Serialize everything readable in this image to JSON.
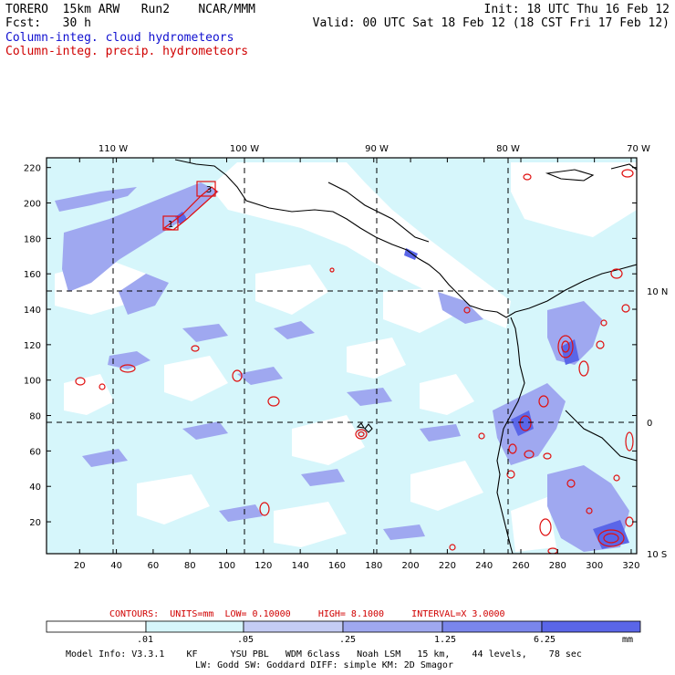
{
  "header": {
    "model": "TORERO",
    "resolution": "15km ARW",
    "run": "Run2",
    "org": "NCAR/MMM",
    "init": "Init: 18 UTC Thu 16 Feb 12",
    "fcst_label": "Fcst:",
    "fcst_value": "30 h",
    "valid": "Valid: 00 UTC Sat 18 Feb 12 (18 CST Fri 17 Feb 12)",
    "field1": "Column-integ. cloud hydrometeors",
    "field2": "Column-integ. precip. hydrometeors"
  },
  "map": {
    "x_ticks": [
      "20",
      "40",
      "60",
      "80",
      "100",
      "120",
      "140",
      "160",
      "180",
      "200",
      "220",
      "240",
      "260",
      "280",
      "300",
      "320"
    ],
    "y_ticks": [
      "20",
      "40",
      "60",
      "80",
      "100",
      "120",
      "140",
      "160",
      "180",
      "200",
      "220"
    ],
    "lon_labels": [
      "110 W",
      "100 W",
      "90 W",
      "80 W",
      "70 W"
    ],
    "lat_labels": [
      "10 N",
      "0",
      "10 S"
    ],
    "box_labels": [
      "1",
      "3"
    ],
    "colors": {
      "ocean": "#ffffff",
      "cloud_light": "#d6f6fb",
      "cloud_mid": "#9fa8f0",
      "cloud_dark": "#5a66e8",
      "precip": "#e01010",
      "coast": "#000000"
    }
  },
  "contours_caption": {
    "prefix": "CONTOURS:",
    "units": "UNITS=mm",
    "low": "LOW= 0.10000",
    "high": "HIGH= 8.1000",
    "interval": "INTERVAL=X 3.0000"
  },
  "colorbar": {
    "labels": [
      ".01",
      ".05",
      ".25",
      "1.25",
      "6.25"
    ],
    "unit": "mm",
    "colors": [
      "#ffffff",
      "#d6f6fb",
      "#c4ccf4",
      "#9fa8f0",
      "#7a86ec",
      "#5a66e8",
      "#2020e8"
    ]
  },
  "footer": {
    "line1": "Model Info: V3.3.1    KF      YSU PBL   WDM 6class   Noah LSM   15 km,    44 levels,    78 sec",
    "line2": "LW: Godd SW: Goddard DIFF: simple KM: 2D Smagor"
  }
}
